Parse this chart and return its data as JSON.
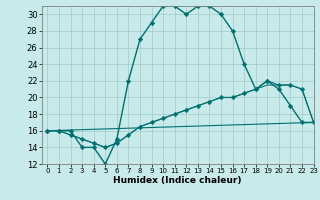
{
  "xlabel": "Humidex (Indice chaleur)",
  "background_color": "#c8eaea",
  "line_color": "#007070",
  "ylim": [
    12,
    31
  ],
  "xlim": [
    -0.5,
    23
  ],
  "yticks": [
    12,
    14,
    16,
    18,
    20,
    22,
    24,
    26,
    28,
    30
  ],
  "xticks": [
    0,
    1,
    2,
    3,
    4,
    5,
    6,
    7,
    8,
    9,
    10,
    11,
    12,
    13,
    14,
    15,
    16,
    17,
    18,
    19,
    20,
    21,
    22,
    23
  ],
  "series": [
    {
      "x": [
        0,
        1,
        2,
        3,
        4,
        5,
        6,
        7,
        8,
        9,
        10,
        11,
        12,
        13,
        14,
        15,
        16,
        17,
        18,
        19,
        20,
        21,
        22,
        23
      ],
      "y": [
        16,
        16,
        16,
        14,
        14,
        12,
        15,
        22,
        27,
        29,
        31,
        31,
        30,
        31,
        31,
        30,
        28,
        24,
        21,
        22,
        21,
        19,
        17,
        17
      ],
      "style": "-",
      "marker": "D",
      "markersize": 2.2,
      "linewidth": 1.0
    },
    {
      "x": [
        0,
        1,
        2,
        3,
        4,
        5,
        6,
        7,
        8,
        9,
        10,
        11,
        12,
        13,
        14,
        15,
        16,
        17,
        18,
        19,
        20,
        21,
        22,
        23
      ],
      "y": [
        16,
        16,
        15.5,
        15,
        14.5,
        14,
        14.5,
        15.5,
        16.5,
        17,
        17.5,
        18,
        18.5,
        19,
        19.5,
        20,
        20,
        20.5,
        21,
        21.5,
        21.5,
        21.5,
        21,
        17
      ],
      "style": "-",
      "marker": null,
      "markersize": 0,
      "linewidth": 0.8
    },
    {
      "x": [
        0,
        1,
        2,
        3,
        4,
        5,
        6,
        7,
        8,
        9,
        10,
        11,
        12,
        13,
        14,
        15,
        16,
        17,
        18,
        19,
        20,
        21,
        22,
        23
      ],
      "y": [
        16,
        16,
        15.5,
        15,
        14.5,
        14,
        14.5,
        15.5,
        16.5,
        17,
        17.5,
        18,
        18.5,
        19,
        19.5,
        20,
        20,
        20.5,
        21,
        22,
        21.5,
        21.5,
        21,
        17
      ],
      "style": "-",
      "marker": "D",
      "markersize": 2.2,
      "linewidth": 0.8
    },
    {
      "x": [
        0,
        23
      ],
      "y": [
        16,
        17
      ],
      "style": "-",
      "marker": null,
      "markersize": 0,
      "linewidth": 0.8
    }
  ]
}
